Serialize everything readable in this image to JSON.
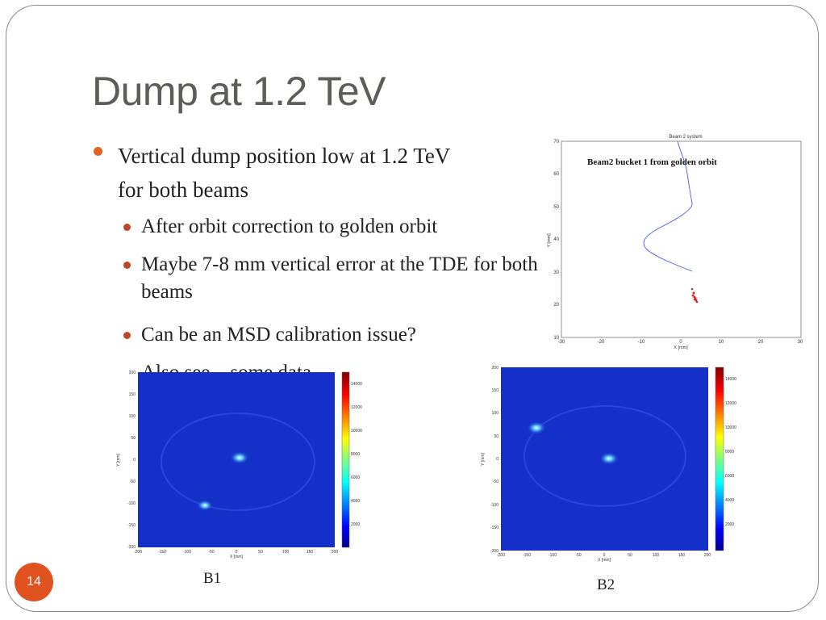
{
  "slide": {
    "title": "Dump at 1.2 TeV",
    "page_number": "14"
  },
  "bullets": {
    "main": "Vertical dump position low at 1.2 TeV for both beams",
    "sub": [
      "After orbit correction to golden orbit",
      "Maybe 7-8 mm vertical error at the TDE for both beams",
      "Can be an MSD calibration issue?"
    ],
    "truncated": "Also see ...some data analysis"
  },
  "beam_plot": {
    "title": "Beam 2 system",
    "annotation": "Beam2 bucket 1 from golden orbit",
    "xlabel": "X [mm]",
    "ylabel": "Y [mm]",
    "xticks": [
      "-30",
      "-20",
      "-10",
      "0",
      "10",
      "20",
      "30"
    ],
    "yticks": [
      "10",
      "20",
      "30",
      "40",
      "50",
      "60",
      "70"
    ]
  },
  "heatmaps": [
    {
      "caption": "B1",
      "xlabel": "X [mm]",
      "ylabel": "Y [mm]",
      "xticks": [
        "-200",
        "-150",
        "-100",
        "-50",
        "0",
        "50",
        "100",
        "150",
        "200"
      ],
      "yticks": [
        "200",
        "150",
        "100",
        "50",
        "0",
        "-50",
        "-100",
        "-150",
        "-200"
      ],
      "cbticks": [
        "14000",
        "12000",
        "10000",
        "8000",
        "6000",
        "4000",
        "2000"
      ]
    },
    {
      "caption": "B2",
      "xlabel": "X [mm]",
      "ylabel": "Y [mm]",
      "xticks": [
        "-200",
        "-150",
        "-100",
        "-50",
        "0",
        "50",
        "100",
        "150",
        "200"
      ],
      "yticks": [
        "200",
        "150",
        "100",
        "50",
        "0",
        "-50",
        "-100",
        "-150",
        "-200"
      ],
      "cbticks": [
        "14000",
        "12000",
        "10000",
        "8000",
        "6000",
        "4000",
        "2000"
      ]
    }
  ],
  "colors": {
    "accent": "#e0521f",
    "title": "#5f5b58",
    "heatmap_bg": "#1530c8"
  }
}
